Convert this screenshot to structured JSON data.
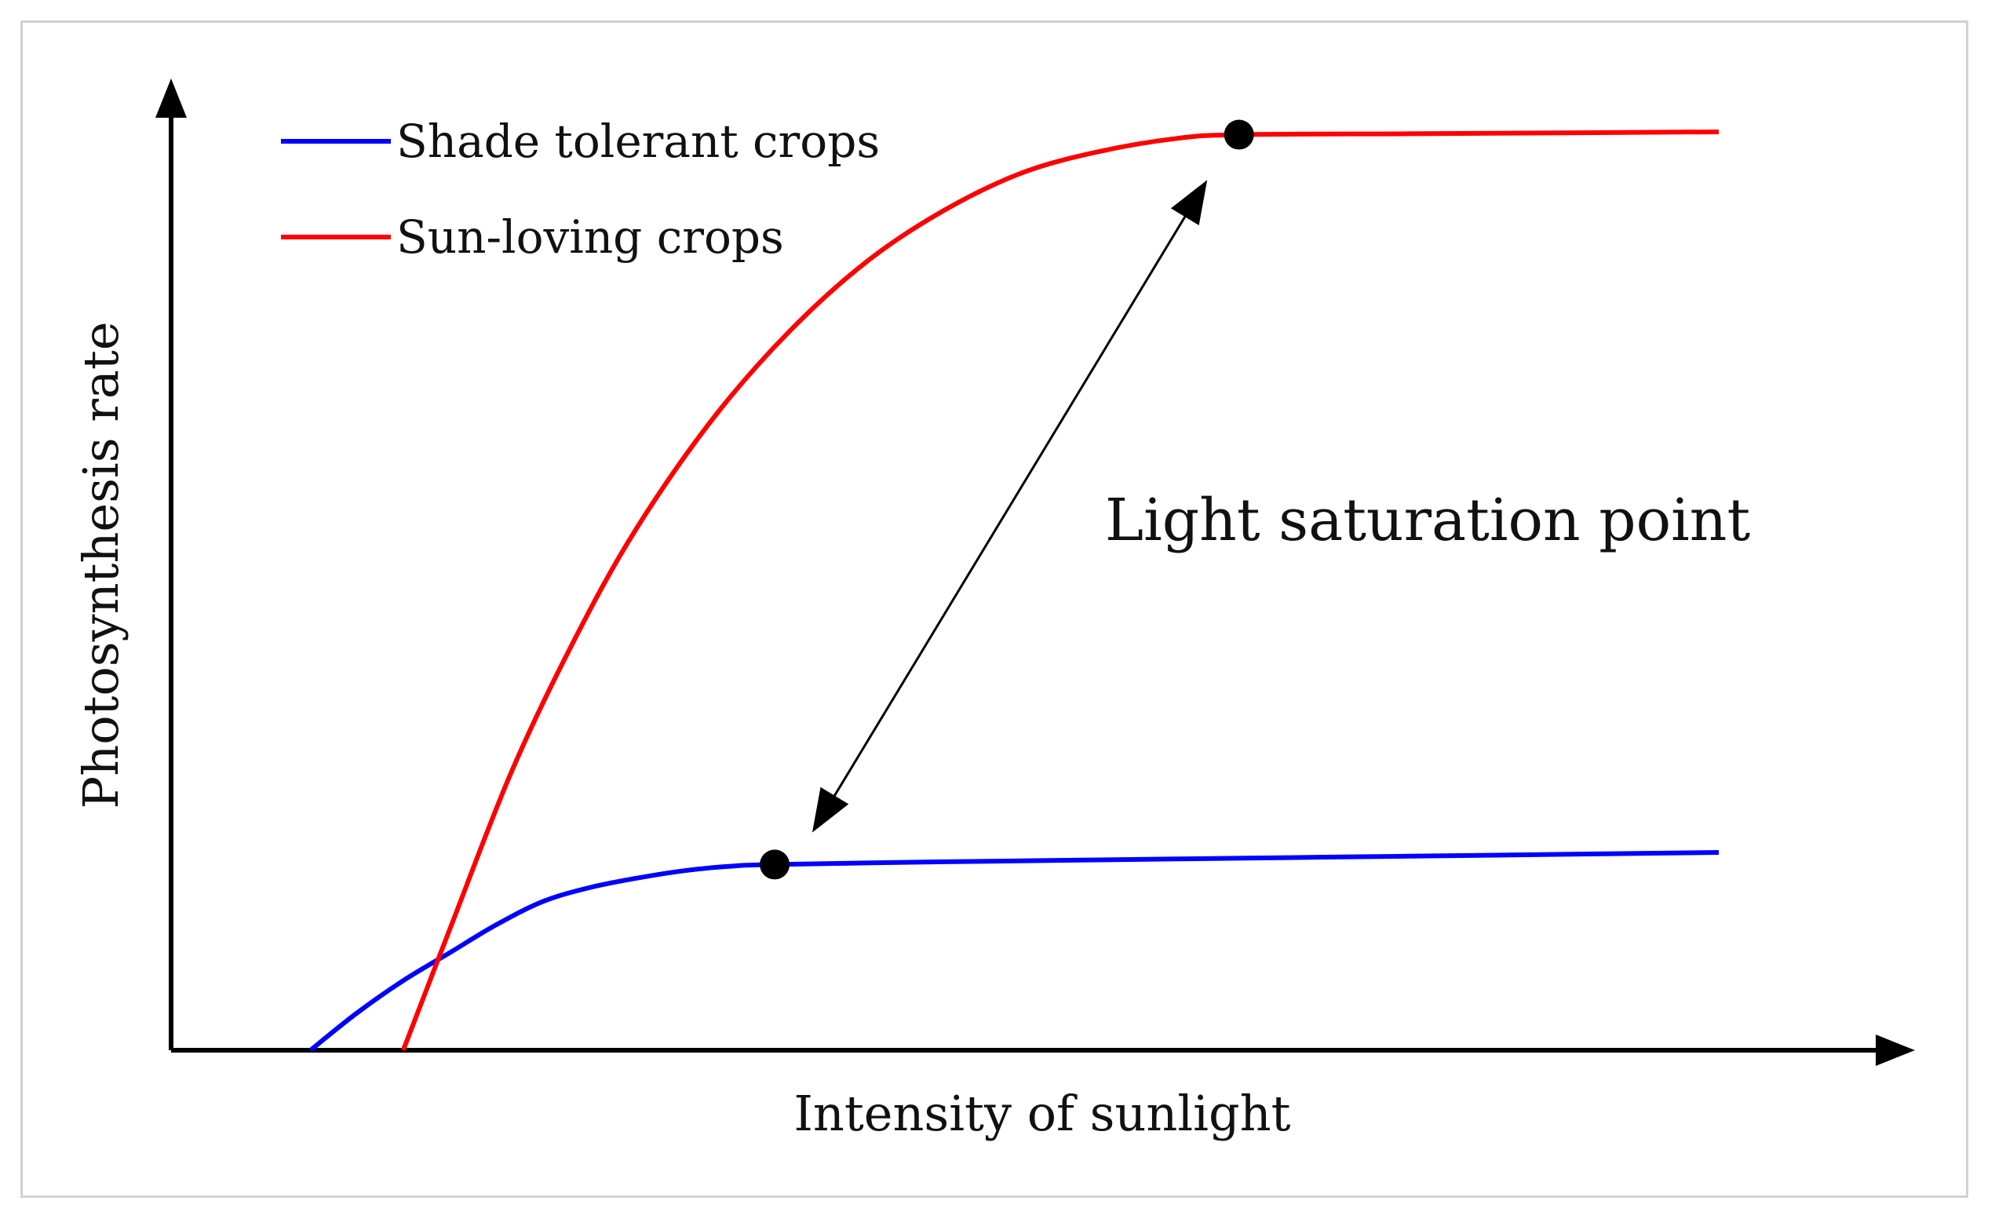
{
  "chart_data": {
    "type": "line",
    "title": "",
    "xlabel": "Intensity of sunlight",
    "ylabel": "Photosynthesis rate",
    "xlim": [
      0,
      100
    ],
    "ylim": [
      0,
      100
    ],
    "grid": false,
    "legend_position": "top-left",
    "series": [
      {
        "name": "Shade tolerant crops",
        "color": "#0000ff",
        "x": [
          9,
          12,
          15,
          18,
          21,
          24,
          27,
          30,
          33,
          36,
          39,
          50,
          60,
          70,
          80,
          90,
          100
        ],
        "y": [
          0,
          4,
          7.5,
          10.5,
          13.5,
          16,
          17.5,
          18.5,
          19.3,
          19.8,
          20,
          20.3,
          20.5,
          20.7,
          20.9,
          21.1,
          21.3
        ],
        "saturation_point": {
          "x": 39,
          "y": 20
        }
      },
      {
        "name": "Sun-loving crops",
        "color": "#ff0000",
        "x": [
          15,
          18,
          22,
          26,
          30,
          35,
          40,
          45,
          50,
          55,
          60,
          65,
          69,
          80,
          90,
          100
        ],
        "y": [
          0,
          13,
          30,
          44,
          56,
          68,
          77.5,
          85,
          90.5,
          94.5,
          96.8,
          98.2,
          98.6,
          98.7,
          98.8,
          98.9
        ],
        "saturation_point": {
          "x": 69,
          "y": 98.6
        }
      }
    ],
    "annotations": [
      {
        "text": "Light saturation point"
      }
    ]
  }
}
